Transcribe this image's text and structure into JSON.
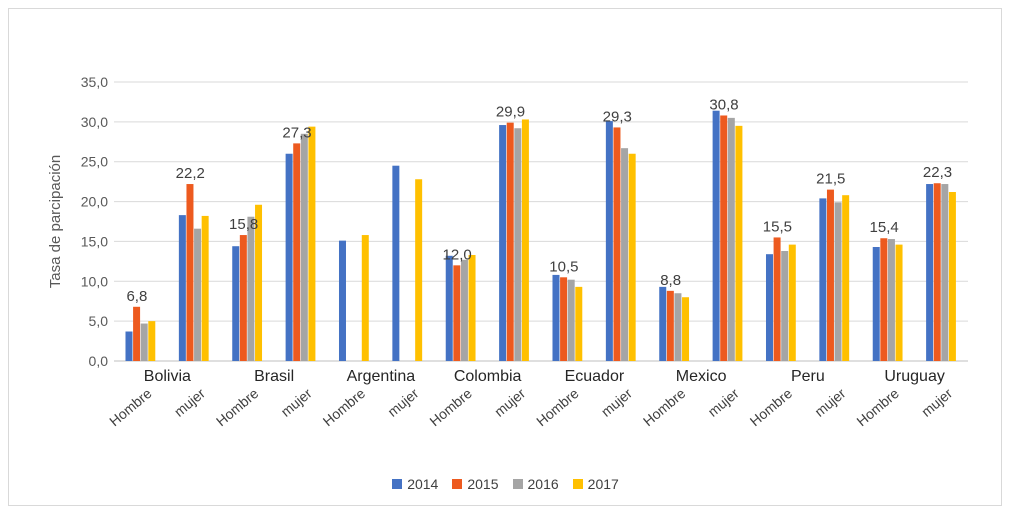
{
  "chart_data": {
    "type": "bar",
    "title": "",
    "xlabel": "",
    "ylabel": "Tasa de parcipación",
    "ylim": [
      0,
      35
    ],
    "yticks": [
      "0,0",
      "5,0",
      "10,0",
      "15,0",
      "20,0",
      "25,0",
      "30,0",
      "35,0"
    ],
    "grid": true,
    "legend_position": "bottom",
    "countries": [
      "Bolivia",
      "Brasil",
      "Argentina",
      "Colombia",
      "Ecuador",
      "Mexico",
      "Peru",
      "Uruguay"
    ],
    "categories": [
      "Hombre",
      "mujer",
      "Hombre",
      "mujer",
      "Hombre",
      "mujer",
      "Hombre",
      "mujer",
      "Hombre",
      "mujer",
      "Hombre",
      "mujer",
      "Hombre",
      "mujer",
      "Hombre",
      "mujer"
    ],
    "series": [
      {
        "name": "2014",
        "color": "#4472c4",
        "values": [
          3.7,
          18.3,
          14.4,
          26.0,
          15.1,
          24.5,
          13.2,
          29.6,
          10.8,
          30.1,
          9.3,
          31.4,
          13.4,
          20.4,
          14.3,
          22.2
        ]
      },
      {
        "name": "2015",
        "color": "#ed5a1f",
        "values": [
          6.8,
          22.2,
          15.8,
          27.3,
          null,
          null,
          12.0,
          29.9,
          10.5,
          29.3,
          8.8,
          30.8,
          15.5,
          21.5,
          15.4,
          22.3
        ]
      },
      {
        "name": "2016",
        "color": "#a5a5a5",
        "values": [
          4.7,
          16.6,
          18.1,
          28.5,
          null,
          null,
          12.7,
          29.2,
          10.2,
          26.7,
          8.5,
          30.5,
          13.8,
          19.9,
          15.3,
          22.2
        ]
      },
      {
        "name": "2017",
        "color": "#ffc000",
        "values": [
          5.0,
          18.2,
          19.6,
          29.4,
          15.8,
          22.8,
          13.3,
          30.3,
          9.3,
          26.0,
          8.0,
          29.5,
          14.6,
          20.8,
          14.6,
          21.2
        ]
      }
    ],
    "data_labels": [
      {
        "index": 0,
        "series": 1,
        "text": "6,8"
      },
      {
        "index": 1,
        "series": 1,
        "text": "22,2"
      },
      {
        "index": 2,
        "series": 1,
        "text": "15,8"
      },
      {
        "index": 3,
        "series": 1,
        "text": "27,3"
      },
      {
        "index": 6,
        "series": 1,
        "text": "12,0"
      },
      {
        "index": 7,
        "series": 1,
        "text": "29,9"
      },
      {
        "index": 8,
        "series": 1,
        "text": "10,5"
      },
      {
        "index": 9,
        "series": 1,
        "text": "29,3"
      },
      {
        "index": 10,
        "series": 1,
        "text": "8,8"
      },
      {
        "index": 11,
        "series": 1,
        "text": "30,8"
      },
      {
        "index": 12,
        "series": 1,
        "text": "15,5"
      },
      {
        "index": 13,
        "series": 1,
        "text": "21,5"
      },
      {
        "index": 14,
        "series": 1,
        "text": "15,4"
      },
      {
        "index": 15,
        "series": 1,
        "text": "22,3"
      }
    ]
  }
}
